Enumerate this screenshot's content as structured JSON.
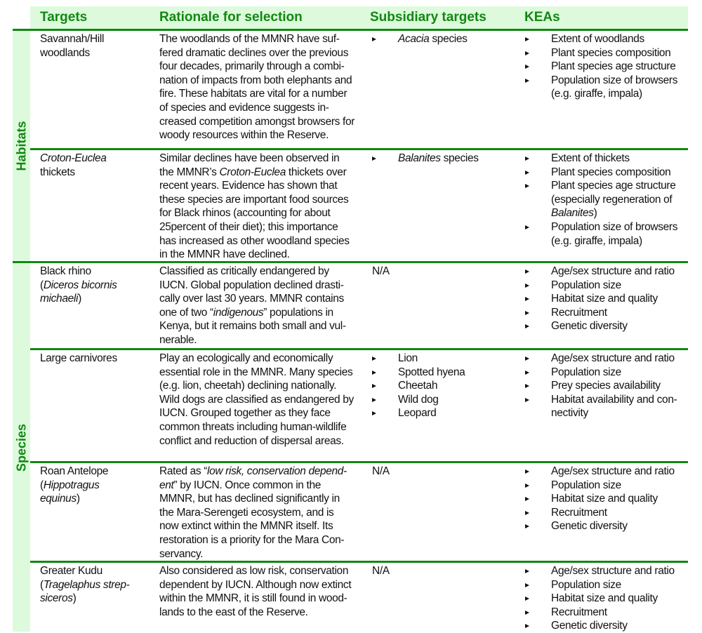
{
  "header": {
    "targets": "Targets",
    "rationale": "Rationale for selection",
    "subsidiary": "Subsidiary targets",
    "keas": "KEAs"
  },
  "categories": {
    "habitats": "Habitats",
    "species": "Species"
  },
  "colors": {
    "accent": "#118811",
    "band": "#ddfadd"
  },
  "rows": [
    {
      "target": [
        [
          [
            "Savannah/Hill",
            false
          ]
        ],
        [
          [
            "woodlands",
            false
          ]
        ]
      ],
      "rationale": [
        "The woodlands of the MMNR have suf-",
        "fered dramatic declines over the previous",
        "four decades, primarily through a combi-",
        "nation of impacts from both elephants and",
        "fire. These habitats are vital for a number",
        "of species and evidence suggests in-",
        "creased competition amongst browsers for",
        "woody resources within the Reserve."
      ],
      "subsidiary": [
        [
          [
            "Acacia",
            true
          ],
          [
            " species",
            false
          ]
        ]
      ],
      "keas": [
        [
          [
            [
              "Extent of woodlands",
              false
            ]
          ]
        ],
        [
          [
            [
              "Plant species composition",
              false
            ]
          ]
        ],
        [
          [
            [
              "Plant species age structure",
              false
            ]
          ]
        ],
        [
          [
            [
              "Population size of browsers",
              false
            ]
          ],
          [
            [
              "(e.g. giraffe, impala)",
              false
            ]
          ]
        ]
      ]
    },
    {
      "target": [
        [
          [
            "Croton-Euclea",
            true
          ]
        ],
        [
          [
            "thickets",
            false
          ]
        ]
      ],
      "rationale": [
        "Similar declines have been observed in",
        [
          [
            "the MMNR’s ",
            false
          ],
          [
            "Croton-Euclea",
            true
          ],
          [
            " thickets over",
            false
          ]
        ],
        "recent years. Evidence has shown that",
        "these species are important food sources",
        "for Black rhinos (accounting for about",
        "25percent of their diet); this importance",
        "has increased as other woodland species",
        "in the MMNR have declined."
      ],
      "subsidiary": [
        [
          [
            "Balanites",
            true
          ],
          [
            " species",
            false
          ]
        ]
      ],
      "keas": [
        [
          [
            [
              "Extent of thickets",
              false
            ]
          ]
        ],
        [
          [
            [
              "Plant species composition",
              false
            ]
          ]
        ],
        [
          [
            [
              "Plant species age structure",
              false
            ]
          ],
          [
            [
              "(especially regeneration of",
              false
            ]
          ],
          [
            [
              "Balanites",
              true
            ],
            [
              ")",
              false
            ]
          ]
        ],
        [
          [
            [
              "Population size of browsers",
              false
            ]
          ],
          [
            [
              "(e.g. giraffe, impala)",
              false
            ]
          ]
        ]
      ]
    },
    {
      "target": [
        [
          [
            "Black rhino",
            false
          ]
        ],
        [
          [
            "(",
            false
          ],
          [
            "Diceros bicornis",
            true
          ]
        ],
        [
          [
            "michaeli",
            true
          ],
          [
            ")",
            false
          ]
        ]
      ],
      "rationale": [
        "Classified as critically endangered by",
        "IUCN. Global population declined drasti-",
        "cally over last 30 years. MMNR contains",
        [
          [
            "one of two “",
            false
          ],
          [
            "indigenous",
            true
          ],
          [
            "” populations in",
            false
          ]
        ],
        "Kenya, but it remains both small and vul-",
        "nerable."
      ],
      "subsidiary_na": "N/A",
      "keas": [
        [
          [
            [
              "Age/sex structure and ratio",
              false
            ]
          ]
        ],
        [
          [
            [
              "Population size",
              false
            ]
          ]
        ],
        [
          [
            [
              "Habitat size and quality",
              false
            ]
          ]
        ],
        [
          [
            [
              "Recruitment",
              false
            ]
          ]
        ],
        [
          [
            [
              "Genetic diversity",
              false
            ]
          ]
        ]
      ]
    },
    {
      "target": [
        [
          [
            "Large carnivores",
            false
          ]
        ]
      ],
      "rationale": [
        "Play an ecologically and economically",
        "essential role in the MMNR. Many species",
        "(e.g. lion, cheetah) declining nationally.",
        "Wild dogs are classified as endangered by",
        "IUCN. Grouped together as they face",
        "common threats including human-wildlife",
        "conflict and reduction of dispersal areas."
      ],
      "subsidiary_list": [
        "Lion",
        "Spotted hyena",
        "Cheetah",
        "Wild dog",
        "Leopard"
      ],
      "keas": [
        [
          [
            [
              "Age/sex structure and ratio",
              false
            ]
          ]
        ],
        [
          [
            [
              "Population size",
              false
            ]
          ]
        ],
        [
          [
            [
              "Prey species availability",
              false
            ]
          ]
        ],
        [
          [
            [
              "Habitat availability and con-",
              false
            ]
          ],
          [
            [
              "nectivity",
              false
            ]
          ]
        ]
      ]
    },
    {
      "target": [
        [
          [
            "Roan Antelope",
            false
          ]
        ],
        [
          [
            "(",
            false
          ],
          [
            "Hippotragus",
            true
          ]
        ],
        [
          [
            "equinus",
            true
          ],
          [
            ")",
            false
          ]
        ]
      ],
      "rationale": [
        [
          [
            "Rated as “",
            false
          ],
          [
            "low risk, conservation depend-",
            true
          ]
        ],
        [
          [
            "ent",
            true
          ],
          [
            "” by IUCN. Once common in the",
            false
          ]
        ],
        "MMNR, but has declined significantly in",
        "the Mara-Serengeti ecosystem, and is",
        "now extinct within the MMNR itself. Its",
        "restoration is a priority for the Mara Con-",
        "servancy."
      ],
      "subsidiary_na": "N/A",
      "keas": [
        [
          [
            [
              "Age/sex structure and ratio",
              false
            ]
          ]
        ],
        [
          [
            [
              "Population size",
              false
            ]
          ]
        ],
        [
          [
            [
              "Habitat size and quality",
              false
            ]
          ]
        ],
        [
          [
            [
              "Recruitment",
              false
            ]
          ]
        ],
        [
          [
            [
              "Genetic diversity",
              false
            ]
          ]
        ]
      ]
    },
    {
      "target": [
        [
          [
            "Greater Kudu",
            false
          ]
        ],
        [
          [
            "(",
            false
          ],
          [
            "Tragelaphus strep-",
            true
          ]
        ],
        [
          [
            "siceros",
            true
          ],
          [
            ")",
            false
          ]
        ]
      ],
      "rationale": [
        "Also considered as low risk, conservation",
        "dependent by  IUCN. Although now extinct",
        "within the MMNR, it is still found in wood-",
        "lands to the east of the Reserve."
      ],
      "subsidiary_na": "N/A",
      "keas": [
        [
          [
            [
              "Age/sex structure and ratio",
              false
            ]
          ]
        ],
        [
          [
            [
              "Population size",
              false
            ]
          ]
        ],
        [
          [
            [
              "Habitat size and quality",
              false
            ]
          ]
        ],
        [
          [
            [
              "Recruitment",
              false
            ]
          ]
        ],
        [
          [
            [
              "Genetic diversity",
              false
            ]
          ]
        ]
      ]
    }
  ]
}
